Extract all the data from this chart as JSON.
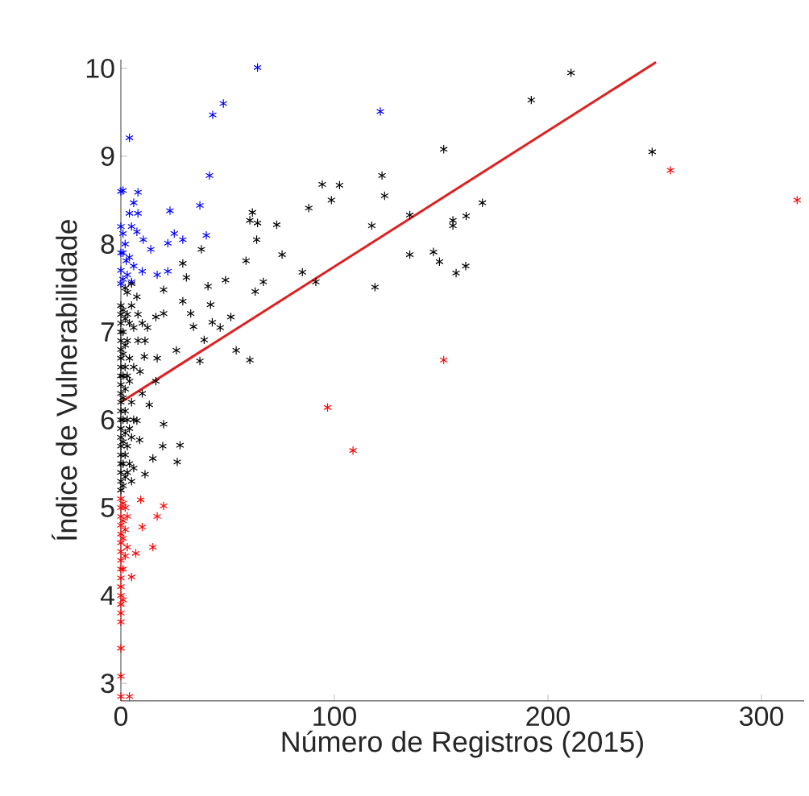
{
  "chart_data": {
    "type": "scatter",
    "xlabel": "Número de Registros (2015)",
    "ylabel": "Índice de Vulnerabilidade",
    "xlim": [
      0,
      320
    ],
    "ylim": [
      2.8,
      10.1
    ],
    "xticks": [
      0,
      100,
      200,
      300
    ],
    "yticks": [
      3,
      4,
      5,
      6,
      7,
      8,
      9,
      10
    ],
    "marker": "cross",
    "series": [
      {
        "color": "#0000ff",
        "x": [
          64,
          43,
          48,
          4,
          41.5,
          1,
          8,
          6,
          4,
          8,
          23,
          37,
          40,
          1,
          7.5,
          10.5,
          14,
          22,
          25,
          29,
          1,
          2.5,
          6,
          10,
          17,
          22,
          1,
          5,
          121.5,
          0,
          0,
          0,
          0,
          0,
          2,
          3,
          4,
          5
        ],
        "values": [
          10.01,
          9.47,
          9.6,
          9.21,
          8.78,
          8.61,
          8.59,
          8.47,
          8.35,
          8.35,
          8.38,
          8.44,
          8.1,
          8.12,
          8.14,
          8.05,
          7.94,
          8.01,
          8.12,
          8.05,
          7.9,
          7.81,
          7.75,
          7.69,
          7.65,
          7.69,
          7.6,
          7.57,
          9.51,
          7.9,
          7.7,
          7.55,
          8.2,
          8.6,
          8.0,
          7.65,
          7.85,
          8.2
        ]
      },
      {
        "color": "#000000",
        "x": [
          94.3,
          98.6,
          88,
          61.6,
          60.4,
          64,
          63.6,
          73,
          75.5,
          58.6,
          85,
          91.3,
          66.7,
          62.9,
          37.7,
          29,
          30.7,
          40.8,
          49,
          20,
          7.5,
          29,
          42,
          51.5,
          32.7,
          34,
          39,
          46.5,
          42.8,
          26,
          37,
          54,
          60.4,
          17,
          11,
          20,
          12.5,
          11.3,
          16.4,
          4,
          16.4,
          210.8,
          192.2,
          151.2,
          248.8,
          102.4,
          122.3,
          123.5,
          117.5,
          135.3,
          169.3,
          161.7,
          155.5,
          155.5,
          135.3,
          146.4,
          149.2,
          157,
          161.5,
          119,
          0,
          0,
          0,
          0,
          0,
          0,
          0,
          0,
          0,
          0,
          0,
          0,
          0,
          0,
          0,
          0,
          0,
          0,
          0,
          0,
          0,
          0,
          1,
          1,
          1,
          1,
          1,
          1,
          1,
          1,
          1,
          2,
          2,
          2,
          2,
          2,
          2,
          2,
          2,
          3,
          3,
          3,
          3,
          3,
          3,
          4,
          4,
          4,
          4,
          5,
          5,
          5,
          5,
          6,
          6,
          6,
          6,
          8,
          8,
          9,
          10,
          10,
          7.5,
          8.8,
          11.3,
          13.3,
          15,
          19.6,
          20,
          26.4,
          27.7,
          2,
          3,
          5
        ],
        "values": [
          8.68,
          8.5,
          8.41,
          8.36,
          8.27,
          8.24,
          8.05,
          8.22,
          7.88,
          7.81,
          7.68,
          7.57,
          7.57,
          7.46,
          7.94,
          7.78,
          7.62,
          7.52,
          7.59,
          7.48,
          7.4,
          7.35,
          7.31,
          7.17,
          7.21,
          7.06,
          6.91,
          7.05,
          7.11,
          6.79,
          6.67,
          6.79,
          6.68,
          6.7,
          6.72,
          7.21,
          7.05,
          6.9,
          7.17,
          6.44,
          6.44,
          9.95,
          9.64,
          9.08,
          9.05,
          8.67,
          8.78,
          8.55,
          8.21,
          8.33,
          8.47,
          8.32,
          8.27,
          8.21,
          7.88,
          7.91,
          7.8,
          7.67,
          7.75,
          7.51,
          7.3,
          7.2,
          7.1,
          7.0,
          6.9,
          6.8,
          6.7,
          6.6,
          6.5,
          6.4,
          6.3,
          6.2,
          6.1,
          6.0,
          5.9,
          5.8,
          5.7,
          5.6,
          5.5,
          5.4,
          5.3,
          5.2,
          7.25,
          7.0,
          6.75,
          6.5,
          6.25,
          6.0,
          5.75,
          5.5,
          5.25,
          7.15,
          6.85,
          6.6,
          6.35,
          6.1,
          5.85,
          5.6,
          5.35,
          7.2,
          6.9,
          6.5,
          6.0,
          5.7,
          5.4,
          7.1,
          6.7,
          5.9,
          5.5,
          7.3,
          6.2,
          5.8,
          5.3,
          7.05,
          6.6,
          6.0,
          5.45,
          7.2,
          6.9,
          6.55,
          7.1,
          6.3,
          5.99,
          5.77,
          5.38,
          6.17,
          5.56,
          5.7,
          5.95,
          5.52,
          5.71,
          7.5,
          7.45,
          7.55
        ]
      },
      {
        "color": "#ff0000",
        "x": [
          257.4,
          316.7,
          151.2,
          96.8,
          108.7,
          9.3,
          20,
          17,
          10,
          15,
          7,
          5,
          0,
          0,
          0,
          0,
          0,
          0,
          0,
          0,
          0,
          0,
          0,
          0,
          0,
          0,
          0,
          0,
          0,
          0,
          1,
          1,
          1,
          1,
          1,
          2,
          2,
          2,
          3,
          3,
          4
        ],
        "values": [
          8.84,
          8.5,
          6.68,
          6.14,
          5.65,
          5.09,
          5.02,
          4.9,
          4.78,
          4.55,
          4.48,
          4.21,
          5.1,
          5.0,
          4.9,
          4.8,
          4.7,
          4.6,
          4.5,
          4.4,
          4.3,
          4.2,
          4.1,
          4.0,
          3.9,
          3.8,
          3.7,
          3.4,
          3.08,
          2.85,
          5.05,
          4.85,
          4.65,
          4.3,
          3.95,
          5.0,
          4.75,
          4.45,
          4.9,
          4.55,
          2.85
        ]
      },
      {
        "type": "line",
        "marker": "none",
        "color": "#e02020",
        "x": [
          0,
          250.6
        ],
        "values": [
          6.2,
          10.07
        ]
      }
    ]
  }
}
